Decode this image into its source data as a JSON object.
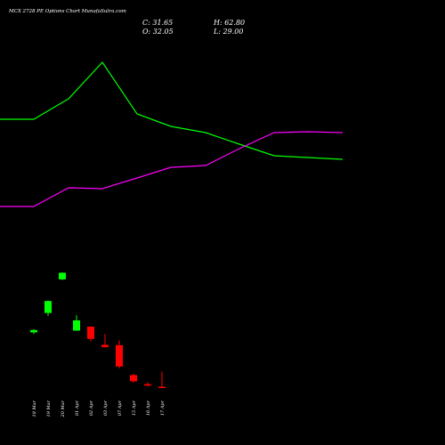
{
  "chart_data": {
    "type": "candlestick",
    "title": "MCX 2728 PE Options Chart MunafaSutra.com",
    "ohlc_summary": {
      "close_label": "C: 31.65",
      "open_label": "O: 32.05",
      "high_label": "H: 62.80",
      "low_label": "L: 29.00"
    },
    "categories": [
      "18 Mar",
      "19 Mar",
      "20 Mar",
      "01 Apr",
      "02 Apr",
      "03 Apr",
      "07 Apr",
      "15 Apr",
      "16 Apr",
      "17 Apr"
    ],
    "candles": [
      {
        "date": "18 Mar",
        "open": 40.5,
        "high": 41.6,
        "low": 39.9,
        "close": 41.3,
        "color": "green"
      },
      {
        "date": "19 Mar",
        "open": 47.3,
        "high": 51.6,
        "low": 46.2,
        "close": 51.5,
        "color": "green"
      },
      {
        "date": "20 Mar",
        "open": 59.1,
        "high": 61.6,
        "low": 58.8,
        "close": 61.4,
        "color": "green"
      },
      {
        "date": "01 Apr",
        "open": 41.1,
        "high": 46.5,
        "low": 41.0,
        "close": 44.7,
        "color": "green"
      },
      {
        "date": "02 Apr",
        "open": 42.5,
        "high": 42.5,
        "low": 37.3,
        "close": 38.2,
        "color": "red"
      },
      {
        "date": "03 Apr",
        "open": 36.1,
        "high": 40.0,
        "low": 35.2,
        "close": 35.3,
        "color": "red"
      },
      {
        "date": "07 Apr",
        "open": 36.0,
        "high": 37.6,
        "low": 27.8,
        "close": 28.5,
        "color": "red"
      },
      {
        "date": "15 Apr",
        "open": 25.5,
        "high": 25.9,
        "low": 22.8,
        "close": 23.3,
        "color": "red"
      },
      {
        "date": "16 Apr",
        "open": 22.3,
        "high": 23.0,
        "low": 21.5,
        "close": 21.8,
        "color": "red"
      },
      {
        "date": "17 Apr",
        "open": 21.4,
        "high": 26.7,
        "low": 21.2,
        "close": 21.3,
        "color": "red"
      }
    ],
    "lines": [
      {
        "color": "#00ff00",
        "points": [
          [
            0,
            134
          ],
          [
            38,
            134
          ],
          [
            77,
            111
          ],
          [
            115,
            70
          ],
          [
            154,
            128
          ],
          [
            192,
            142
          ],
          [
            231,
            149
          ],
          [
            269,
            162
          ],
          [
            308,
            175
          ],
          [
            346,
            177
          ],
          [
            385,
            179
          ]
        ]
      },
      {
        "color": "#ff00ff",
        "points": [
          [
            0,
            232
          ],
          [
            38,
            232
          ],
          [
            77,
            211
          ],
          [
            115,
            212
          ],
          [
            154,
            200
          ],
          [
            192,
            188
          ],
          [
            231,
            186
          ],
          [
            269,
            167
          ],
          [
            308,
            149
          ],
          [
            346,
            148
          ],
          [
            385,
            149
          ]
        ]
      }
    ],
    "y_scale": {
      "ref_value": 40.0,
      "ref_px": 375,
      "px_per_unit": 3.2
    },
    "colors": {
      "background": "#000000",
      "up": "#00ff00",
      "down": "#ff0000",
      "text": "#ffffff"
    }
  }
}
